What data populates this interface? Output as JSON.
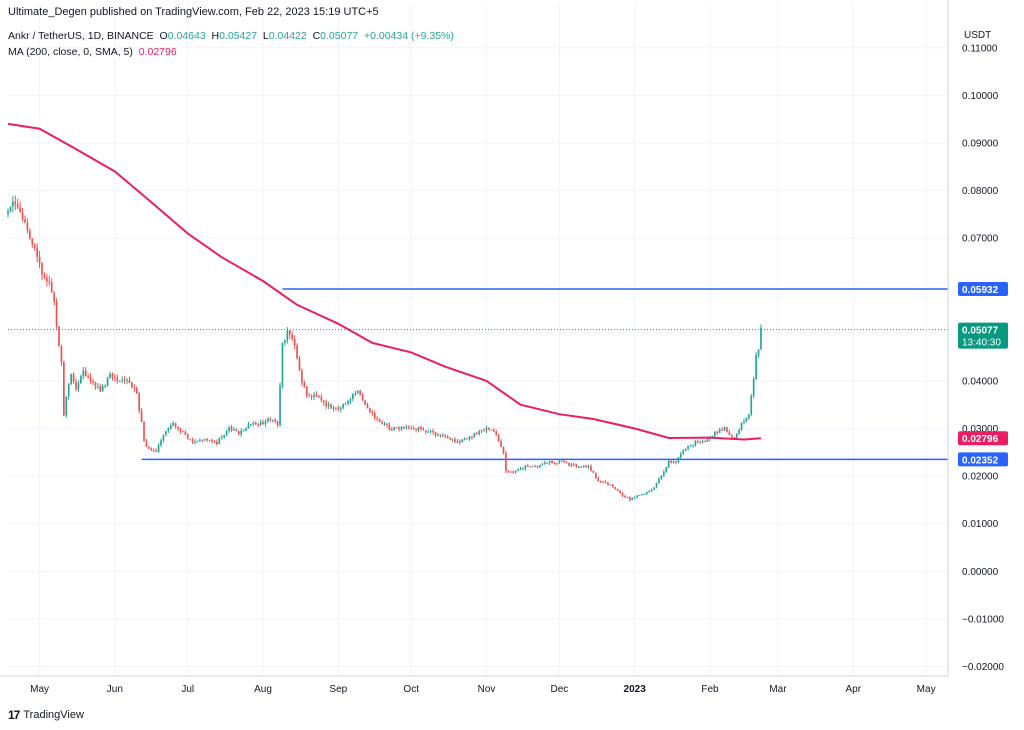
{
  "header": {
    "published": "Ultimate_Degen published on TradingView.com, Feb 22, 2023 15:19 UTC+5"
  },
  "legend": {
    "symbol": "Ankr / TetherUS, 1D, BINANCE",
    "open_label": "O",
    "open": "0.04643",
    "high_label": "H",
    "high": "0.05427",
    "low_label": "L",
    "low": "0.04422",
    "close_label": "C",
    "close": "0.05077",
    "change": "+0.00434 (+9.35%)",
    "ma_label": "MA (200, close, 0, SMA, 5)",
    "ma_value": "0.02796"
  },
  "axis_unit": "USDT",
  "footer": {
    "brand": "TradingView",
    "logo": "17"
  },
  "colors": {
    "up": "#26a69a",
    "down": "#ef5350",
    "ma": "#e91e63",
    "level": "#2962ff",
    "grid": "#f0f3fa",
    "last": "#089981"
  },
  "chart_data": {
    "type": "candlestick",
    "symbol": "ANKRUSDT",
    "timeframe": "1D",
    "ylim": [
      -0.022,
      0.115
    ],
    "y_ticks": [
      "0.11000",
      "0.10000",
      "0.09000",
      "0.08000",
      "0.07000",
      "0.04000",
      "0.03000",
      "0.02000",
      "0.01000",
      "0.00000",
      "−0.01000",
      "−0.02000"
    ],
    "y_tick_values": [
      0.11,
      0.1,
      0.09,
      0.08,
      0.07,
      0.04,
      0.03,
      0.02,
      0.01,
      0.0,
      -0.01,
      -0.02
    ],
    "x_ticks": [
      "May",
      "Jun",
      "Jul",
      "Aug",
      "Sep",
      "Oct",
      "Nov",
      "Dec",
      "2023",
      "Feb",
      "Mar",
      "Apr",
      "May"
    ],
    "x_tick_dates": [
      "2022-05-01",
      "2022-06-01",
      "2022-07-01",
      "2022-08-01",
      "2022-09-01",
      "2022-10-01",
      "2022-11-01",
      "2022-12-01",
      "2023-01-01",
      "2023-02-01",
      "2023-03-01",
      "2023-04-01",
      "2023-05-01"
    ],
    "x_range": [
      "2022-04-18",
      "2023-05-10"
    ],
    "horizontal_levels": [
      {
        "value": 0.05932,
        "label": "0.05932",
        "from": "2022-08-09"
      },
      {
        "value": 0.02352,
        "label": "0.02352",
        "from": "2022-06-12"
      }
    ],
    "last_price": {
      "value": 0.05077,
      "label": "0.05077",
      "countdown": "13:40:30"
    },
    "ma_last": {
      "value": 0.02796,
      "label": "0.02796"
    },
    "close_path": [
      [
        "2022-04-18",
        0.075
      ],
      [
        "2022-04-20",
        0.077
      ],
      [
        "2022-04-23",
        0.075
      ],
      [
        "2022-04-26",
        0.072
      ],
      [
        "2022-04-29",
        0.068
      ],
      [
        "2022-05-02",
        0.063
      ],
      [
        "2022-05-05",
        0.061
      ],
      [
        "2022-05-07",
        0.056
      ],
      [
        "2022-05-09",
        0.047
      ],
      [
        "2022-05-10",
        0.044
      ],
      [
        "2022-05-11",
        0.033
      ],
      [
        "2022-05-12",
        0.037
      ],
      [
        "2022-05-14",
        0.041
      ],
      [
        "2022-05-16",
        0.038
      ],
      [
        "2022-05-19",
        0.042
      ],
      [
        "2022-05-22",
        0.04
      ],
      [
        "2022-05-26",
        0.038
      ],
      [
        "2022-05-30",
        0.041
      ],
      [
        "2022-06-03",
        0.04
      ],
      [
        "2022-06-07",
        0.04
      ],
      [
        "2022-06-10",
        0.037
      ],
      [
        "2022-06-12",
        0.031
      ],
      [
        "2022-06-13",
        0.027
      ],
      [
        "2022-06-15",
        0.026
      ],
      [
        "2022-06-18",
        0.025
      ],
      [
        "2022-06-21",
        0.029
      ],
      [
        "2022-06-25",
        0.031
      ],
      [
        "2022-06-29",
        0.029
      ],
      [
        "2022-07-03",
        0.027
      ],
      [
        "2022-07-08",
        0.028
      ],
      [
        "2022-07-13",
        0.027
      ],
      [
        "2022-07-18",
        0.03
      ],
      [
        "2022-07-22",
        0.029
      ],
      [
        "2022-07-27",
        0.031
      ],
      [
        "2022-07-31",
        0.031
      ],
      [
        "2022-08-04",
        0.032
      ],
      [
        "2022-08-07",
        0.031
      ],
      [
        "2022-08-09",
        0.048
      ],
      [
        "2022-08-11",
        0.05
      ],
      [
        "2022-08-13",
        0.049
      ],
      [
        "2022-08-15",
        0.045
      ],
      [
        "2022-08-17",
        0.04
      ],
      [
        "2022-08-19",
        0.037
      ],
      [
        "2022-08-23",
        0.037
      ],
      [
        "2022-08-27",
        0.035
      ],
      [
        "2022-09-01",
        0.034
      ],
      [
        "2022-09-05",
        0.036
      ],
      [
        "2022-09-09",
        0.038
      ],
      [
        "2022-09-13",
        0.034
      ],
      [
        "2022-09-17",
        0.032
      ],
      [
        "2022-09-22",
        0.03
      ],
      [
        "2022-09-28",
        0.03
      ],
      [
        "2022-10-04",
        0.03
      ],
      [
        "2022-10-10",
        0.029
      ],
      [
        "2022-10-16",
        0.028
      ],
      [
        "2022-10-20",
        0.027
      ],
      [
        "2022-10-24",
        0.028
      ],
      [
        "2022-10-28",
        0.029
      ],
      [
        "2022-11-01",
        0.03
      ],
      [
        "2022-11-05",
        0.029
      ],
      [
        "2022-11-08",
        0.025
      ],
      [
        "2022-11-09",
        0.021
      ],
      [
        "2022-11-12",
        0.021
      ],
      [
        "2022-11-17",
        0.022
      ],
      [
        "2022-11-22",
        0.022
      ],
      [
        "2022-11-27",
        0.023
      ],
      [
        "2022-12-02",
        0.023
      ],
      [
        "2022-12-08",
        0.022
      ],
      [
        "2022-12-13",
        0.022
      ],
      [
        "2022-12-17",
        0.019
      ],
      [
        "2022-12-22",
        0.018
      ],
      [
        "2022-12-27",
        0.016
      ],
      [
        "2022-12-30",
        0.015
      ],
      [
        "2023-01-03",
        0.016
      ],
      [
        "2023-01-08",
        0.017
      ],
      [
        "2023-01-12",
        0.02
      ],
      [
        "2023-01-15",
        0.023
      ],
      [
        "2023-01-18",
        0.023
      ],
      [
        "2023-01-22",
        0.026
      ],
      [
        "2023-01-26",
        0.027
      ],
      [
        "2023-01-30",
        0.027
      ],
      [
        "2023-02-03",
        0.029
      ],
      [
        "2023-02-07",
        0.03
      ],
      [
        "2023-02-11",
        0.028
      ],
      [
        "2023-02-14",
        0.031
      ],
      [
        "2023-02-17",
        0.033
      ],
      [
        "2023-02-19",
        0.04
      ],
      [
        "2023-02-20",
        0.045
      ],
      [
        "2023-02-21",
        0.04643
      ],
      [
        "2023-02-22",
        0.05077
      ]
    ],
    "ma_path": [
      [
        "2022-04-18",
        0.094
      ],
      [
        "2022-05-01",
        0.093
      ],
      [
        "2022-05-15",
        0.089
      ],
      [
        "2022-06-01",
        0.084
      ],
      [
        "2022-06-15",
        0.078
      ],
      [
        "2022-07-01",
        0.071
      ],
      [
        "2022-07-15",
        0.066
      ],
      [
        "2022-08-01",
        0.061
      ],
      [
        "2022-08-15",
        0.056
      ],
      [
        "2022-09-01",
        0.052
      ],
      [
        "2022-09-15",
        0.048
      ],
      [
        "2022-10-01",
        0.046
      ],
      [
        "2022-10-15",
        0.043
      ],
      [
        "2022-11-01",
        0.04
      ],
      [
        "2022-11-15",
        0.035
      ],
      [
        "2022-12-01",
        0.033
      ],
      [
        "2022-12-15",
        0.032
      ],
      [
        "2023-01-01",
        0.03
      ],
      [
        "2023-01-15",
        0.028
      ],
      [
        "2023-02-01",
        0.0281
      ],
      [
        "2023-02-15",
        0.0277
      ],
      [
        "2023-02-22",
        0.02796
      ]
    ]
  }
}
